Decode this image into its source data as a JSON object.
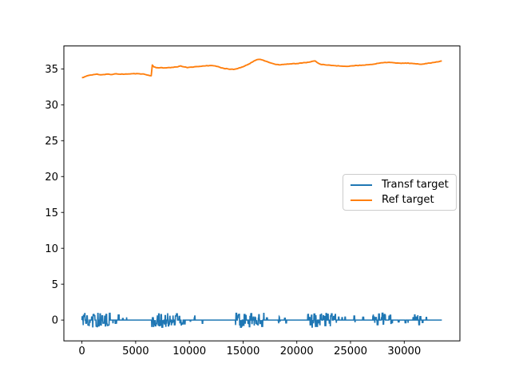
{
  "chart_data": {
    "type": "line",
    "title": "",
    "xlabel": "",
    "ylabel": "",
    "grid": false,
    "xlim": [
      -1680,
      35180
    ],
    "ylim": [
      -2.9,
      38.2
    ],
    "xticks": [
      0,
      5000,
      10000,
      15000,
      20000,
      25000,
      30000
    ],
    "yticks": [
      0,
      5,
      10,
      15,
      20,
      25,
      30,
      35
    ],
    "legend": {
      "position": "center right",
      "entries": [
        "Transf target",
        "Ref target"
      ]
    },
    "axis_color": "#000000",
    "background": "#ffffff",
    "series": [
      {
        "name": "Transf target",
        "color": "#1f77b4",
        "style": "noisy-baseline",
        "baseline": 0,
        "x_range": [
          0,
          33500
        ],
        "noise_amplitude": 1.0,
        "noise_bursts": [
          [
            0,
            2560,
            1.0,
            2.2
          ],
          [
            2650,
            2900,
            0.45,
            0.5
          ],
          [
            3080,
            3600,
            0.95,
            0.8
          ],
          [
            3750,
            3820,
            0.45,
            0.8
          ],
          [
            4120,
            4200,
            0.5,
            0.8
          ],
          [
            6500,
            8950,
            1.0,
            2.2
          ],
          [
            9000,
            9700,
            0.7,
            1.0
          ],
          [
            10040,
            10140,
            0.5,
            0.8
          ],
          [
            10400,
            10750,
            0.6,
            0.8
          ],
          [
            11150,
            11320,
            0.55,
            0.7
          ],
          [
            11650,
            11800,
            0.4,
            0.6
          ],
          [
            14300,
            16950,
            1.0,
            2.2
          ],
          [
            17100,
            17300,
            0.55,
            0.7
          ],
          [
            17750,
            17950,
            0.6,
            0.6
          ],
          [
            18250,
            18450,
            0.5,
            0.6
          ],
          [
            18850,
            19150,
            0.6,
            0.6
          ],
          [
            19580,
            19700,
            0.45,
            0.7
          ],
          [
            20330,
            20460,
            0.45,
            0.7
          ],
          [
            20980,
            23250,
            1.0,
            2.2
          ],
          [
            23320,
            24350,
            0.85,
            1.2
          ],
          [
            24460,
            25450,
            0.6,
            0.45
          ],
          [
            26030,
            26160,
            0.4,
            0.6
          ],
          [
            27060,
            28320,
            1.0,
            2.2
          ],
          [
            28400,
            29050,
            0.7,
            0.9
          ],
          [
            29100,
            30400,
            0.5,
            0.35
          ],
          [
            30650,
            31520,
            0.75,
            1.0,
            0.85
          ],
          [
            31650,
            32150,
            0.4,
            0.4
          ]
        ]
      },
      {
        "name": "Ref target",
        "color": "#ff7f0e",
        "style": "line",
        "points": [
          [
            0,
            33.78
          ],
          [
            250,
            33.9
          ],
          [
            500,
            34.05
          ],
          [
            800,
            34.15
          ],
          [
            1100,
            34.22
          ],
          [
            1400,
            34.28
          ],
          [
            1700,
            34.18
          ],
          [
            2000,
            34.22
          ],
          [
            2400,
            34.28
          ],
          [
            2800,
            34.22
          ],
          [
            3200,
            34.32
          ],
          [
            3600,
            34.26
          ],
          [
            4100,
            34.3
          ],
          [
            4600,
            34.33
          ],
          [
            5100,
            34.35
          ],
          [
            5600,
            34.3
          ],
          [
            5900,
            34.22
          ],
          [
            6200,
            34.12
          ],
          [
            6450,
            34.05
          ],
          [
            6550,
            35.55
          ],
          [
            6700,
            35.28
          ],
          [
            6900,
            35.18
          ],
          [
            7300,
            35.18
          ],
          [
            7700,
            35.15
          ],
          [
            8100,
            35.2
          ],
          [
            8500,
            35.22
          ],
          [
            8900,
            35.28
          ],
          [
            9200,
            35.42
          ],
          [
            9500,
            35.28
          ],
          [
            9800,
            35.18
          ],
          [
            10200,
            35.25
          ],
          [
            10600,
            35.32
          ],
          [
            11000,
            35.35
          ],
          [
            11500,
            35.42
          ],
          [
            12000,
            35.48
          ],
          [
            12400,
            35.42
          ],
          [
            12800,
            35.25
          ],
          [
            13200,
            35.08
          ],
          [
            13600,
            35.0
          ],
          [
            14100,
            34.93
          ],
          [
            14500,
            35.05
          ],
          [
            15000,
            35.3
          ],
          [
            15500,
            35.65
          ],
          [
            16000,
            36.1
          ],
          [
            16300,
            36.3
          ],
          [
            16600,
            36.33
          ],
          [
            16900,
            36.2
          ],
          [
            17300,
            35.98
          ],
          [
            17700,
            35.78
          ],
          [
            18100,
            35.62
          ],
          [
            18500,
            35.58
          ],
          [
            19000,
            35.65
          ],
          [
            19500,
            35.7
          ],
          [
            20000,
            35.75
          ],
          [
            20500,
            35.82
          ],
          [
            21000,
            35.92
          ],
          [
            21400,
            36.05
          ],
          [
            21700,
            36.12
          ],
          [
            21900,
            35.88
          ],
          [
            22200,
            35.65
          ],
          [
            22600,
            35.58
          ],
          [
            23100,
            35.52
          ],
          [
            23600,
            35.45
          ],
          [
            24100,
            35.4
          ],
          [
            24600,
            35.36
          ],
          [
            25100,
            35.42
          ],
          [
            25600,
            35.48
          ],
          [
            26100,
            35.52
          ],
          [
            26600,
            35.58
          ],
          [
            27100,
            35.65
          ],
          [
            27600,
            35.78
          ],
          [
            28100,
            35.88
          ],
          [
            28600,
            35.92
          ],
          [
            29100,
            35.85
          ],
          [
            29600,
            35.8
          ],
          [
            30100,
            35.82
          ],
          [
            30600,
            35.78
          ],
          [
            31100,
            35.7
          ],
          [
            31600,
            35.65
          ],
          [
            32100,
            35.75
          ],
          [
            32600,
            35.88
          ],
          [
            33000,
            35.98
          ],
          [
            33500,
            36.1
          ]
        ]
      }
    ]
  }
}
